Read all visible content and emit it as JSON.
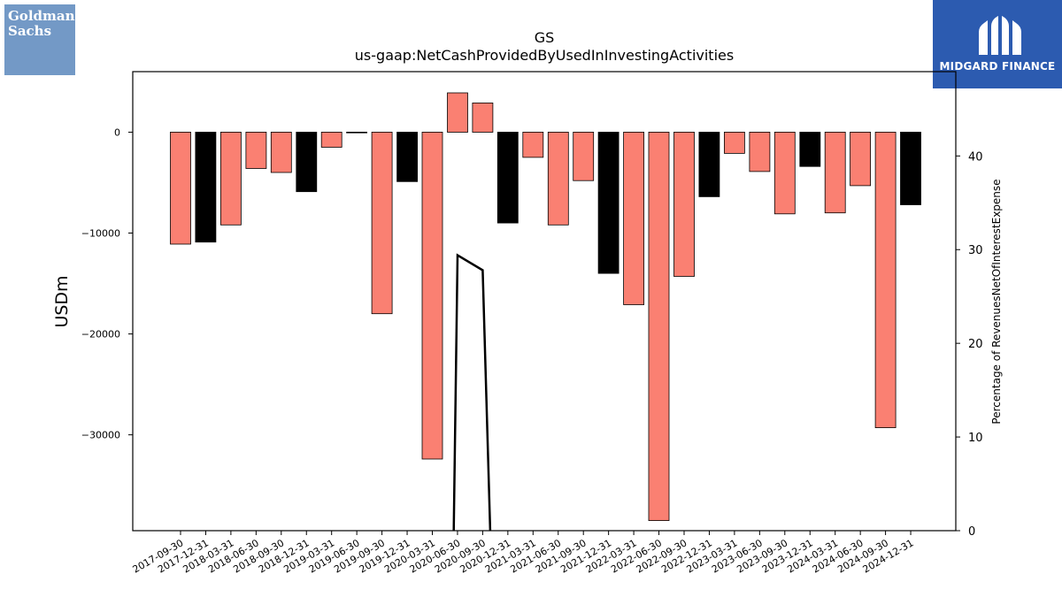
{
  "logos": {
    "left": {
      "line1": "Goldman",
      "line2": "Sachs",
      "color": "#7399c6"
    },
    "right": {
      "name": "MIDGARD FINANCE",
      "color": "#2c5bb0"
    }
  },
  "chart_data": {
    "type": "bar",
    "title": "GS",
    "subtitle": "us-gaap:NetCashProvidedByUsedInInvestingActivities",
    "ylabel": "USDm",
    "y2label": "Percentage of RevenuesNetOfInterestExpense",
    "ylim": [
      -39500,
      6000
    ],
    "y2lim": [
      0,
      49
    ],
    "yticks": [
      0,
      -10000,
      -20000,
      -30000
    ],
    "ytick_labels": [
      "0",
      "−10000",
      "−20000",
      "−30000"
    ],
    "y2ticks": [
      0,
      10,
      20,
      30,
      40
    ],
    "colors": {
      "positive_period": "#fa8072",
      "year_end": "#000000",
      "line": "#000000"
    },
    "categories": [
      "2017-09-30",
      "2017-12-31",
      "2018-03-31",
      "2018-06-30",
      "2018-09-30",
      "2018-12-31",
      "2019-03-31",
      "2019-06-30",
      "2019-09-30",
      "2019-12-31",
      "2020-03-31",
      "2020-06-30",
      "2020-09-30",
      "2020-12-31",
      "2021-03-31",
      "2021-06-30",
      "2021-09-30",
      "2021-12-31",
      "2022-03-31",
      "2022-06-30",
      "2022-09-30",
      "2022-12-31",
      "2023-03-31",
      "2023-06-30",
      "2023-09-30",
      "2023-12-31",
      "2024-03-31",
      "2024-06-30",
      "2024-09-30",
      "2024-12-31"
    ],
    "values": [
      -11100,
      -10900,
      -9200,
      -3600,
      -4000,
      -5900,
      -1500,
      0,
      -18000,
      -4900,
      -32400,
      3900,
      2900,
      -9000,
      -2500,
      -9200,
      -4800,
      -14000,
      -17100,
      -38500,
      -14300,
      -6400,
      -2100,
      -3900,
      -8100,
      -3400,
      -8000,
      -5300,
      -29300,
      -7200
    ],
    "bar_colors": [
      "#fa8072",
      "#000000",
      "#fa8072",
      "#fa8072",
      "#fa8072",
      "#000000",
      "#fa8072",
      "#000000",
      "#fa8072",
      "#000000",
      "#fa8072",
      "#fa8072",
      "#fa8072",
      "#000000",
      "#fa8072",
      "#fa8072",
      "#fa8072",
      "#000000",
      "#fa8072",
      "#fa8072",
      "#fa8072",
      "#000000",
      "#fa8072",
      "#fa8072",
      "#fa8072",
      "#000000",
      "#fa8072",
      "#fa8072",
      "#fa8072",
      "#000000"
    ],
    "line_series": {
      "x_index": [
        10.85,
        11.0,
        12.0,
        12.3
      ],
      "values": [
        0,
        29.4,
        27.8,
        0
      ]
    }
  }
}
